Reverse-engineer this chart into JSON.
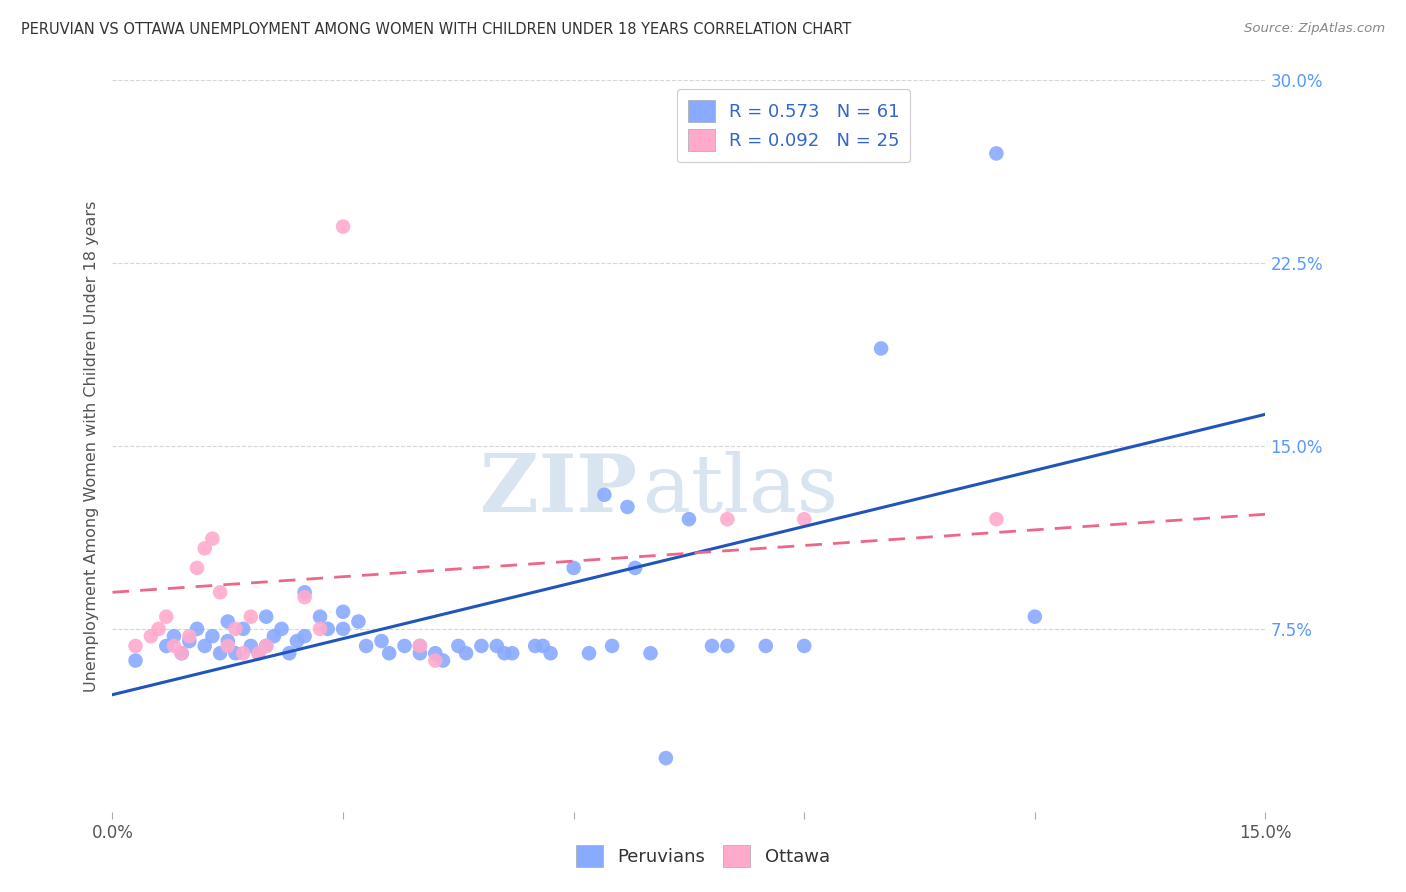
{
  "title": "PERUVIAN VS OTTAWA UNEMPLOYMENT AMONG WOMEN WITH CHILDREN UNDER 18 YEARS CORRELATION CHART",
  "source": "Source: ZipAtlas.com",
  "ylabel": "Unemployment Among Women with Children Under 18 years",
  "xlim": [
    0.0,
    0.15
  ],
  "ylim": [
    0.0,
    0.3
  ],
  "yticks": [
    0.0,
    0.075,
    0.15,
    0.225,
    0.3
  ],
  "xticks": [
    0.0,
    0.03,
    0.06,
    0.09,
    0.12,
    0.15
  ],
  "watermark_zip": "ZIP",
  "watermark_atlas": "atlas",
  "legend_blue_R": "0.573",
  "legend_blue_N": "61",
  "legend_pink_R": "0.092",
  "legend_pink_N": "25",
  "peruvian_color": "#88aaff",
  "ottawa_color": "#ffaacc",
  "peruvian_scatter": [
    [
      0.003,
      0.062
    ],
    [
      0.007,
      0.068
    ],
    [
      0.008,
      0.072
    ],
    [
      0.009,
      0.065
    ],
    [
      0.01,
      0.07
    ],
    [
      0.011,
      0.075
    ],
    [
      0.012,
      0.068
    ],
    [
      0.013,
      0.072
    ],
    [
      0.014,
      0.065
    ],
    [
      0.015,
      0.07
    ],
    [
      0.015,
      0.078
    ],
    [
      0.016,
      0.065
    ],
    [
      0.017,
      0.075
    ],
    [
      0.018,
      0.068
    ],
    [
      0.019,
      0.065
    ],
    [
      0.02,
      0.08
    ],
    [
      0.02,
      0.068
    ],
    [
      0.021,
      0.072
    ],
    [
      0.022,
      0.075
    ],
    [
      0.023,
      0.065
    ],
    [
      0.024,
      0.07
    ],
    [
      0.025,
      0.09
    ],
    [
      0.025,
      0.072
    ],
    [
      0.027,
      0.08
    ],
    [
      0.028,
      0.075
    ],
    [
      0.03,
      0.075
    ],
    [
      0.03,
      0.082
    ],
    [
      0.032,
      0.078
    ],
    [
      0.033,
      0.068
    ],
    [
      0.035,
      0.07
    ],
    [
      0.036,
      0.065
    ],
    [
      0.038,
      0.068
    ],
    [
      0.04,
      0.065
    ],
    [
      0.04,
      0.068
    ],
    [
      0.042,
      0.065
    ],
    [
      0.043,
      0.062
    ],
    [
      0.045,
      0.068
    ],
    [
      0.046,
      0.065
    ],
    [
      0.048,
      0.068
    ],
    [
      0.05,
      0.068
    ],
    [
      0.051,
      0.065
    ],
    [
      0.052,
      0.065
    ],
    [
      0.055,
      0.068
    ],
    [
      0.056,
      0.068
    ],
    [
      0.057,
      0.065
    ],
    [
      0.06,
      0.1
    ],
    [
      0.062,
      0.065
    ],
    [
      0.064,
      0.13
    ],
    [
      0.065,
      0.068
    ],
    [
      0.067,
      0.125
    ],
    [
      0.068,
      0.1
    ],
    [
      0.07,
      0.065
    ],
    [
      0.072,
      0.022
    ],
    [
      0.075,
      0.12
    ],
    [
      0.078,
      0.068
    ],
    [
      0.08,
      0.068
    ],
    [
      0.085,
      0.068
    ],
    [
      0.09,
      0.068
    ],
    [
      0.1,
      0.19
    ],
    [
      0.115,
      0.27
    ],
    [
      0.12,
      0.08
    ]
  ],
  "ottawa_scatter": [
    [
      0.003,
      0.068
    ],
    [
      0.005,
      0.072
    ],
    [
      0.006,
      0.075
    ],
    [
      0.007,
      0.08
    ],
    [
      0.008,
      0.068
    ],
    [
      0.009,
      0.065
    ],
    [
      0.01,
      0.072
    ],
    [
      0.011,
      0.1
    ],
    [
      0.012,
      0.108
    ],
    [
      0.013,
      0.112
    ],
    [
      0.014,
      0.09
    ],
    [
      0.015,
      0.068
    ],
    [
      0.016,
      0.075
    ],
    [
      0.017,
      0.065
    ],
    [
      0.018,
      0.08
    ],
    [
      0.019,
      0.065
    ],
    [
      0.02,
      0.068
    ],
    [
      0.025,
      0.088
    ],
    [
      0.027,
      0.075
    ],
    [
      0.03,
      0.24
    ],
    [
      0.04,
      0.068
    ],
    [
      0.042,
      0.062
    ],
    [
      0.08,
      0.12
    ],
    [
      0.09,
      0.12
    ],
    [
      0.115,
      0.12
    ]
  ],
  "blue_line_x": [
    0.0,
    0.15
  ],
  "blue_line_y": [
    0.048,
    0.163
  ],
  "pink_line_x": [
    0.0,
    0.15
  ],
  "pink_line_y": [
    0.09,
    0.122
  ],
  "background_color": "#ffffff",
  "grid_color": "#cccccc",
  "title_color": "#333333",
  "right_tick_color": "#5599ff",
  "bottom_tick_color": "#555555"
}
